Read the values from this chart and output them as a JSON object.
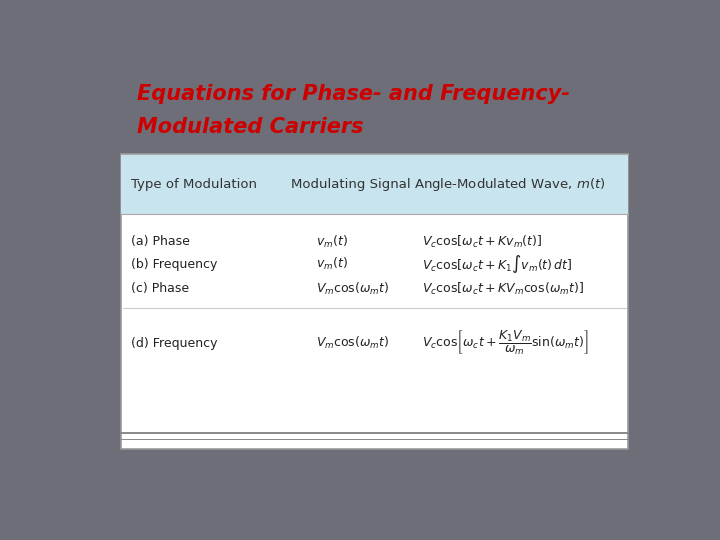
{
  "title_line1": "Equations for Phase- and Frequency-",
  "title_line2": "Modulated Carriers",
  "title_color": "#cc0000",
  "title_fontsize": 15,
  "title_fontstyle": "italic",
  "title_fontweight": "bold",
  "bg_color": "#6e6e78",
  "table_bg": "#ffffff",
  "header_bg": "#c8e4ee",
  "header_color": "#333333",
  "header_fontsize": 9.5,
  "row_fontsize": 9,
  "col1_header": "Type of Modulation",
  "col2_header": "Modulating Signal",
  "col3_header": "Angle-Modulated Wave, $m(t)$",
  "rows": [
    {
      "label": "(a) Phase",
      "signal": "$v_m(t)$",
      "equation": "$V_c \\cos[\\omega_c t + Kv_m(t)]$"
    },
    {
      "label": "(b) Frequency",
      "signal": "$v_m(t)$",
      "equation": "$V_c \\cos[\\omega_c t + K_1{\\int}v_m(t)\\,dt]$"
    },
    {
      "label": "(c) Phase",
      "signal": "$V_m \\cos(\\omega_m t)$",
      "equation": "$V_c \\cos[\\omega_c t + KV_m \\cos(\\omega_m t)]$"
    },
    {
      "label": "(d) Frequency",
      "signal": "$V_m \\cos(\\omega_m t)$",
      "equation": "$V_c \\cos\\!\\left[\\omega_c t + \\dfrac{K_1 V_m}{\\omega_m}\\sin(\\omega_m t)\\right]$"
    }
  ]
}
